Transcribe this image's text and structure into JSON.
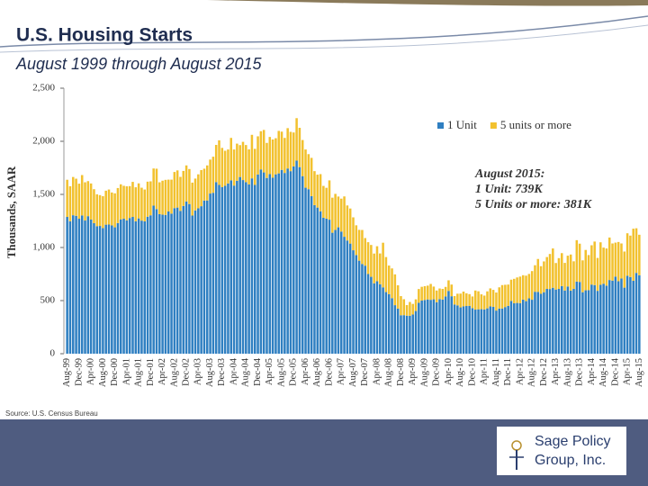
{
  "chart_data": {
    "type": "stacked-bar",
    "title": "U.S. Housing Starts",
    "subtitle": "August 1999 through August 2015",
    "y_label": "Thousands, SAAR",
    "ylim": [
      0,
      2500
    ],
    "yticks": [
      0,
      500,
      {
        "value": 1000,
        "label": "1,000"
      },
      {
        "value": 1500,
        "label": "1,500"
      },
      {
        "value": 2000,
        "label": "2,000"
      },
      {
        "value": 2500,
        "label": "2,500"
      }
    ],
    "grid": false,
    "categories": [
      "Aug-99",
      null,
      null,
      null,
      "Dec-99",
      null,
      null,
      null,
      "Apr-00",
      null,
      null,
      null,
      "Aug-00",
      null,
      null,
      null,
      "Dec-00",
      null,
      null,
      null,
      "Apr-01",
      null,
      null,
      null,
      "Aug-01",
      null,
      null,
      null,
      "Dec-01",
      null,
      null,
      null,
      "Apr-02",
      null,
      null,
      null,
      "Aug-02",
      null,
      null,
      null,
      "Dec-02",
      null,
      null,
      null,
      "Apr-03",
      null,
      null,
      null,
      "Aug-03",
      null,
      null,
      null,
      "Dec-03",
      null,
      null,
      null,
      "Apr-04",
      null,
      null,
      null,
      "Aug-04",
      null,
      null,
      null,
      "Dec-04",
      null,
      null,
      null,
      "Apr-05",
      null,
      null,
      null,
      "Aug-05",
      null,
      null,
      null,
      "Dec-05",
      null,
      null,
      null,
      "Apr-06",
      null,
      null,
      null,
      "Aug-06",
      null,
      null,
      null,
      "Dec-06",
      null,
      null,
      null,
      "Apr-07",
      null,
      null,
      null,
      "Aug-07",
      null,
      null,
      null,
      "Dec-07",
      null,
      null,
      null,
      "Apr-08",
      null,
      null,
      null,
      "Aug-08",
      null,
      null,
      null,
      "Dec-08",
      null,
      null,
      null,
      "Apr-09",
      null,
      null,
      null,
      "Aug-09",
      null,
      null,
      null,
      "Dec-09",
      null,
      null,
      null,
      "Apr-10",
      null,
      null,
      null,
      "Aug-10",
      null,
      null,
      null,
      "Dec-10",
      null,
      null,
      null,
      "Apr-11",
      null,
      null,
      null,
      "Aug-11",
      null,
      null,
      null,
      "Dec-11",
      null,
      null,
      null,
      "Apr-12",
      null,
      null,
      null,
      "Aug-12",
      null,
      null,
      null,
      "Dec-12",
      null,
      null,
      null,
      "Apr-13",
      null,
      null,
      null,
      "Aug-13",
      null,
      null,
      null,
      "Dec-13",
      null,
      null,
      null,
      "Apr-14",
      null,
      null,
      null,
      "Aug-14",
      null,
      null,
      null,
      "Dec-14",
      null,
      null,
      null,
      "Apr-15",
      null,
      null,
      null,
      "Aug-15"
    ],
    "series": [
      {
        "name": "1 Unit",
        "color": "#2f7fc1",
        "values": [
          1288,
          1247,
          1304,
          1298,
          1271,
          1302,
          1254,
          1295,
          1263,
          1229,
          1201,
          1203,
          1183,
          1215,
          1216,
          1208,
          1190,
          1230,
          1265,
          1271,
          1256,
          1278,
          1288,
          1247,
          1274,
          1253,
          1246,
          1290,
          1303,
          1394,
          1362,
          1314,
          1309,
          1307,
          1339,
          1319,
          1371,
          1376,
          1345,
          1391,
          1433,
          1409,
          1301,
          1349,
          1369,
          1389,
          1442,
          1443,
          1508,
          1515,
          1616,
          1589,
          1568,
          1581,
          1603,
          1632,
          1583,
          1628,
          1664,
          1635,
          1615,
          1594,
          1651,
          1589,
          1687,
          1735,
          1707,
          1655,
          1691,
          1657,
          1689,
          1698,
          1731,
          1702,
          1744,
          1719,
          1763,
          1818,
          1757,
          1672,
          1563,
          1549,
          1484,
          1399,
          1376,
          1341,
          1280,
          1272,
          1262,
          1139,
          1165,
          1190,
          1150,
          1101,
          1066,
          1037,
          974,
          929,
          876,
          845,
          829,
          750,
          724,
          663,
          682,
          654,
          625,
          580,
          560,
          523,
          457,
          424,
          362,
          363,
          358,
          357,
          369,
          402,
          479,
          500,
          506,
          511,
          507,
          512,
          485,
          514,
          510,
          539,
          591,
          541,
          463,
          455,
          436,
          445,
          449,
          451,
          429,
          415,
          418,
          419,
          417,
          427,
          445,
          441,
          406,
          425,
          426,
          439,
          451,
          497,
          475,
          478,
          476,
          509,
          495,
          521,
          508,
          583,
          582,
          564,
          579,
          610,
          609,
          621,
          604,
          610,
          637,
          595,
          633,
          594,
          610,
          679,
          676,
          579,
          597,
          599,
          651,
          646,
          592,
          649,
          659,
          641,
          694,
          688,
          726,
          682,
          708,
          622,
          734,
          722,
          687,
          761,
          739
        ]
      },
      {
        "name": "5 units or more",
        "color": "#f2c12e",
        "values": [
          350,
          330,
          360,
          350,
          330,
          380,
          360,
          330,
          340,
          320,
          300,
          290,
          300,
          320,
          330,
          310,
          320,
          330,
          330,
          310,
          320,
          300,
          330,
          320,
          330,
          310,
          300,
          330,
          320,
          350,
          380,
          300,
          320,
          330,
          300,
          320,
          340,
          350,
          320,
          330,
          340,
          330,
          310,
          300,
          320,
          340,
          300,
          330,
          320,
          340,
          350,
          420,
          370,
          330,
          320,
          400,
          340,
          350,
          300,
          360,
          350,
          330,
          410,
          340,
          360,
          360,
          400,
          330,
          350,
          360,
          340,
          400,
          360,
          330,
          380,
          370,
          320,
          400,
          370,
          340,
          360,
          330,
          360,
          320,
          310,
          350,
          300,
          290,
          370,
          330,
          340,
          290,
          310,
          380,
          330,
          330,
          310,
          280,
          290,
          320,
          260,
          300,
          300,
          280,
          330,
          290,
          420,
          330,
          270,
          280,
          290,
          220,
          180,
          150,
          100,
          130,
          100,
          110,
          130,
          130,
          130,
          130,
          150,
          120,
          110,
          100,
          100,
          90,
          100,
          110,
          80,
          110,
          130,
          140,
          120,
          110,
          110,
          180,
          170,
          140,
          130,
          160,
          170,
          160,
          170,
          200,
          220,
          210,
          200,
          200,
          230,
          240,
          250,
          230,
          240,
          230,
          270,
          250,
          310,
          260,
          290,
          300,
          330,
          370,
          250,
          290,
          310,
          260,
          290,
          340,
          260,
          390,
          360,
          300,
          380,
          330,
          370,
          410,
          310,
          400,
          340,
          350,
          400,
          350,
          320,
          370,
          330,
          340,
          400,
          390,
          490,
          420,
          381
        ]
      }
    ],
    "legend_position": "upper right",
    "annotations": [
      "August 2015:",
      "1 Unit: 739K",
      "5 Units or more: 381K"
    ],
    "source": "Source: U.S. Census Bureau",
    "logo": [
      "Sage Policy",
      "Group, Inc."
    ]
  }
}
